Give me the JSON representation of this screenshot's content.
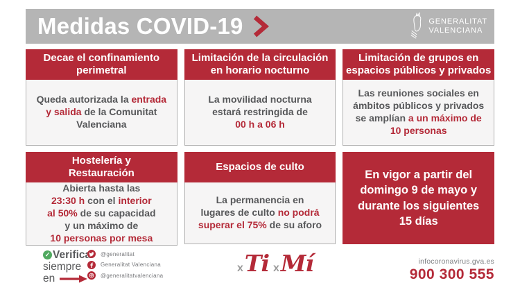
{
  "colors": {
    "accent_red": "#b42a38",
    "band_gray": "#b5b5b5",
    "card_body_bg": "#f6f5f5",
    "card_border": "#b1b1b1",
    "text_dark": "#57585a",
    "text_gray": "#808285",
    "check_green": "#4fa95f",
    "white": "#ffffff"
  },
  "header": {
    "title": "Medidas COVID-19",
    "logo": {
      "line1": "GENERALITAT",
      "line2": "VALENCIANA"
    }
  },
  "cards": [
    {
      "id": "confinamiento-perimetral",
      "title_lines": [
        "Decae el confinamiento",
        "perimetral"
      ],
      "body": [
        {
          "t": "Queda autorizada la "
        },
        {
          "t": "entrada\ny salida",
          "h": true
        },
        {
          "t": " de la Comunitat\nValenciana"
        }
      ]
    },
    {
      "id": "circulacion-nocturna",
      "title_lines": [
        "Limitación de la circulación",
        "en horario nocturno"
      ],
      "body": [
        {
          "t": "La movilidad nocturna\nestará restringida de\n"
        },
        {
          "t": "00 h a 06 h",
          "h": true
        }
      ]
    },
    {
      "id": "limitacion-grupos",
      "title_lines": [
        "Limitación de grupos en",
        "espacios públicos y privados"
      ],
      "body": [
        {
          "t": "Las reuniones sociales en\námbitos públicos y privados\nse amplían "
        },
        {
          "t": "a un máximo de\n10 personas",
          "h": true
        }
      ]
    },
    {
      "id": "hosteleria-restauracion",
      "title_lines": [
        "Hostelería y",
        "Restauración"
      ],
      "body": [
        {
          "t": "Abierta hasta las\n"
        },
        {
          "t": "23:30 h",
          "h": true
        },
        {
          "t": " con el "
        },
        {
          "t": "interior\nal 50%",
          "h": true
        },
        {
          "t": " de su capacidad\ny un máximo de\n"
        },
        {
          "t": "10 personas por mesa",
          "h": true
        }
      ]
    },
    {
      "id": "espacios-culto",
      "title_lines": [
        "Espacios de culto"
      ],
      "body": [
        {
          "t": "La permanencia en\nlugares de culto "
        },
        {
          "t": "no podrá\nsuperar el 75%",
          "h": true
        },
        {
          "t": " de su aforo"
        }
      ]
    },
    {
      "id": "entrada-en-vigor",
      "body": [
        {
          "t": "En vigor a partir del\ndomingo 9 de mayo y\ndurante los siguientes\n15 días"
        }
      ]
    }
  ],
  "footer": {
    "verify": {
      "check_glyph": "✓",
      "word1": "Verifica",
      "word2": "siempre",
      "word3": "en"
    },
    "social": [
      {
        "network": "twitter",
        "handle": "@generalitat"
      },
      {
        "network": "facebook",
        "handle": "Generalitat Valenciana"
      },
      {
        "network": "instagram",
        "handle": "@generalitatvalenciana"
      }
    ],
    "campaign": {
      "x1": "x",
      "word1": "Ti",
      "x2": "x",
      "word2": "Mí"
    },
    "contact": {
      "website": "infocoronavirus.gva.es",
      "phone": "900 300 555"
    }
  }
}
